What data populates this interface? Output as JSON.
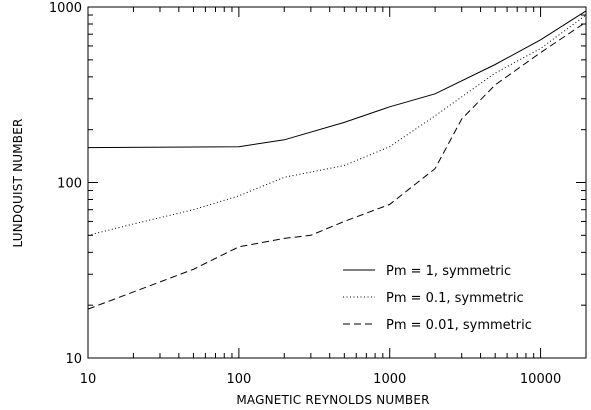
{
  "chart_data": {
    "type": "line",
    "title": "",
    "xlabel": "MAGNETIC REYNOLDS NUMBER",
    "ylabel": "LUNDQUIST NUMBER",
    "xscale": "log",
    "yscale": "log",
    "xlim": [
      10,
      20000
    ],
    "ylim": [
      10,
      1000
    ],
    "xticks": [
      10,
      100,
      1000,
      10000
    ],
    "xtick_labels": [
      "10",
      "100",
      "1000",
      "10000"
    ],
    "yticks": [
      10,
      100,
      1000
    ],
    "ytick_labels": [
      "10",
      "100",
      "1000"
    ],
    "grid": false,
    "legend_position": "bottom-right",
    "series": [
      {
        "name": "Pm = 1, symmetric",
        "line_style": "solid",
        "x": [
          10,
          100,
          200,
          500,
          1000,
          2000,
          5000,
          10000,
          20000
        ],
        "y": [
          158,
          160,
          175,
          220,
          270,
          320,
          470,
          650,
          950
        ]
      },
      {
        "name": "Pm = 0.1, symmetric",
        "line_style": "dotted",
        "x": [
          10,
          20,
          50,
          100,
          200,
          500,
          1000,
          2000,
          5000,
          10000,
          20000
        ],
        "y": [
          50,
          58,
          70,
          84,
          107,
          125,
          160,
          240,
          420,
          580,
          900
        ]
      },
      {
        "name": "Pm = 0.01, symmetric",
        "line_style": "dashed",
        "x": [
          10,
          50,
          100,
          200,
          300,
          500,
          1000,
          2000,
          3000,
          5000,
          10000,
          20000
        ],
        "y": [
          19,
          32,
          43,
          48,
          50,
          60,
          75,
          120,
          230,
          360,
          550,
          820
        ]
      }
    ]
  }
}
